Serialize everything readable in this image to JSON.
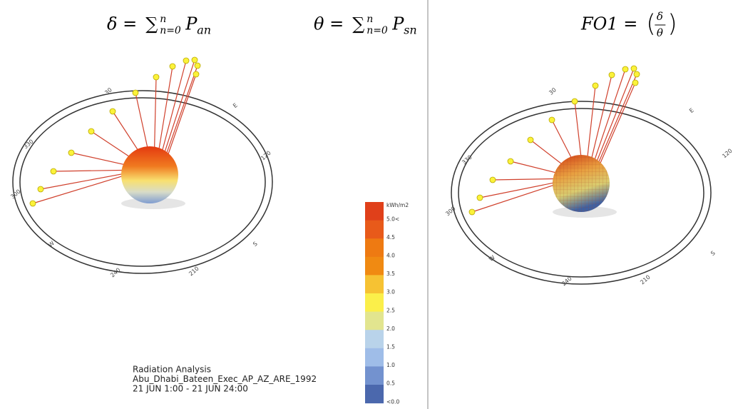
{
  "formulas": [
    {
      "lhs": "δ =",
      "sum": "∑",
      "sup": "n",
      "sub": "n=0",
      "var": "P",
      "var_sub": "an"
    },
    {
      "lhs": "θ =",
      "sum": "∑",
      "sup": "n",
      "sub": "n=0",
      "var": "P",
      "var_sub": "sn"
    },
    {
      "lhs": "FO1 =",
      "numerator": "δ",
      "denominator": "θ"
    }
  ],
  "panels": [
    {
      "compass_labels": [
        "30",
        "E",
        "120",
        "S",
        "210",
        "240",
        "W",
        "300",
        "330"
      ]
    },
    {
      "compass_labels": [
        "30",
        "E",
        "120",
        "S",
        "210",
        "240",
        "W",
        "300",
        "330"
      ]
    }
  ],
  "legend": {
    "unit": "kWh/m2",
    "labels": [
      "5.0<",
      "4.5",
      "4.0",
      "3.5",
      "3.0",
      "2.5",
      "2.0",
      "1.5",
      "1.0",
      "0.5",
      "<0.0"
    ],
    "colors": [
      "#e0401a",
      "#e85a1a",
      "#ee7a12",
      "#f08a12",
      "#f6c233",
      "#fbef4a",
      "#e2e58f",
      "#b9d3ea",
      "#9fbde8",
      "#7392cf",
      "#4b68ad"
    ]
  },
  "caption": [
    "Radiation Analysis",
    "Abu_Dhabi_Bateen_Exec_AP_AZ_ARE_1992",
    "21 JUN 1:00 - 21 JUN 24:00"
  ]
}
